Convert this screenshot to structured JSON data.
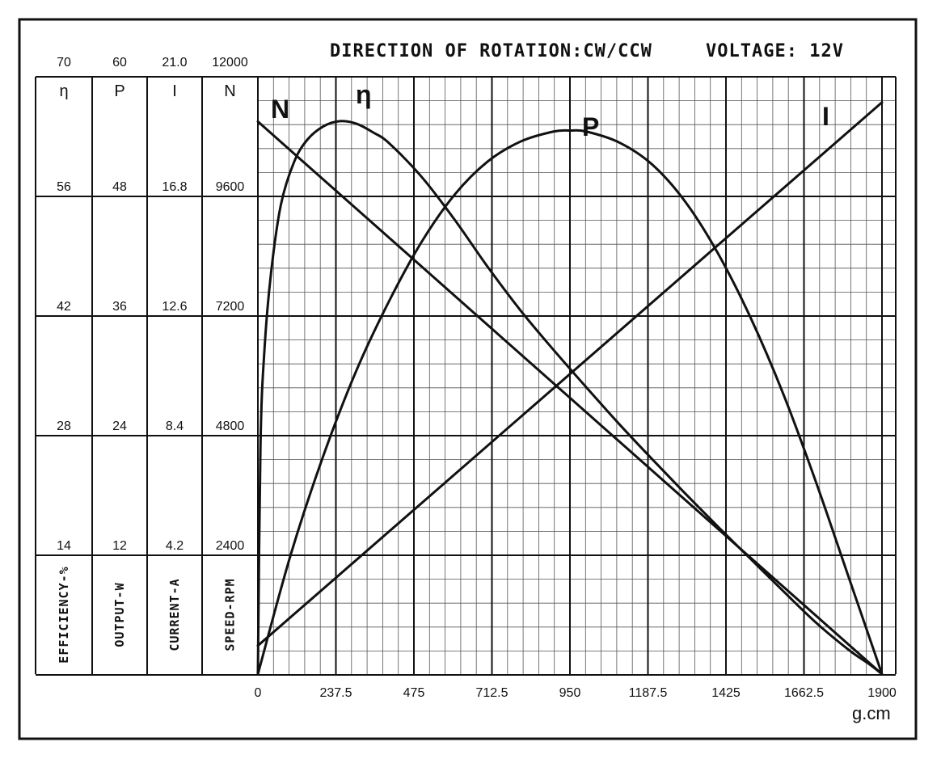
{
  "chart_data": {
    "type": "line",
    "title": "DIRECTION OF ROTATION:CW/CCW",
    "voltage_label": "VOLTAGE: 12V",
    "x_axis": {
      "unit": "g.cm",
      "range": [
        0,
        1900
      ],
      "tick_labels": [
        "0",
        "237.5",
        "475",
        "712.5",
        "950",
        "1187.5",
        "1425",
        "1662.5",
        "1900"
      ]
    },
    "columns": [
      {
        "symbol": "η",
        "name": "EFFICIENCY-%",
        "range": [
          0,
          70
        ],
        "tick_labels": [
          "70",
          "56",
          "42",
          "28",
          "14"
        ]
      },
      {
        "symbol": "P",
        "name": "OUTPUT-W",
        "range": [
          0,
          60
        ],
        "tick_labels": [
          "60",
          "48",
          "36",
          "24",
          "12"
        ]
      },
      {
        "symbol": "I",
        "name": "CURRENT-A",
        "range": [
          0,
          21.0
        ],
        "tick_labels": [
          "21.0",
          "16.8",
          "12.6",
          "8.4",
          "4.2"
        ]
      },
      {
        "symbol": "N",
        "name": "SPEED-RPM",
        "range": [
          0,
          12000
        ],
        "tick_labels": [
          "12000",
          "9600",
          "7200",
          "4800",
          "2400"
        ]
      }
    ],
    "grid": true,
    "series": [
      {
        "name": "N",
        "axis": "SPEED-RPM",
        "x": [
          0,
          1900
        ],
        "y": [
          11100,
          0
        ]
      },
      {
        "name": "I",
        "axis": "CURRENT-A",
        "x": [
          0,
          1900
        ],
        "y": [
          1.0,
          20.1
        ]
      },
      {
        "name": "η",
        "axis": "EFFICIENCY-%",
        "x": [
          0,
          8,
          20,
          40,
          70,
          110,
          150,
          200,
          250,
          300,
          350,
          400,
          500,
          600,
          700,
          800,
          900,
          1000,
          1100,
          1200,
          1300,
          1400,
          1500,
          1600,
          1700,
          1800,
          1860,
          1900
        ],
        "y": [
          0,
          27,
          38,
          47,
          55,
          60,
          62.6,
          64.2,
          64.8,
          64.5,
          63.5,
          62.2,
          58.2,
          53.2,
          47.7,
          42.6,
          38.0,
          33.6,
          29.3,
          25.2,
          21.2,
          17.3,
          13.5,
          9.7,
          6.0,
          2.8,
          1.2,
          0
        ]
      },
      {
        "name": "P",
        "axis": "OUTPUT-W",
        "x": [
          0,
          100,
          200,
          300,
          400,
          500,
          600,
          700,
          800,
          900,
          950,
          1000,
          1100,
          1200,
          1300,
          1400,
          1500,
          1600,
          1700,
          1800,
          1900
        ],
        "y": [
          0,
          12,
          22,
          30.5,
          37.5,
          43.5,
          48.2,
          51.5,
          53.5,
          54.5,
          54.6,
          54.5,
          53.4,
          51.2,
          47.5,
          42.3,
          35.8,
          28.1,
          19.2,
          9.6,
          0
        ]
      }
    ]
  }
}
